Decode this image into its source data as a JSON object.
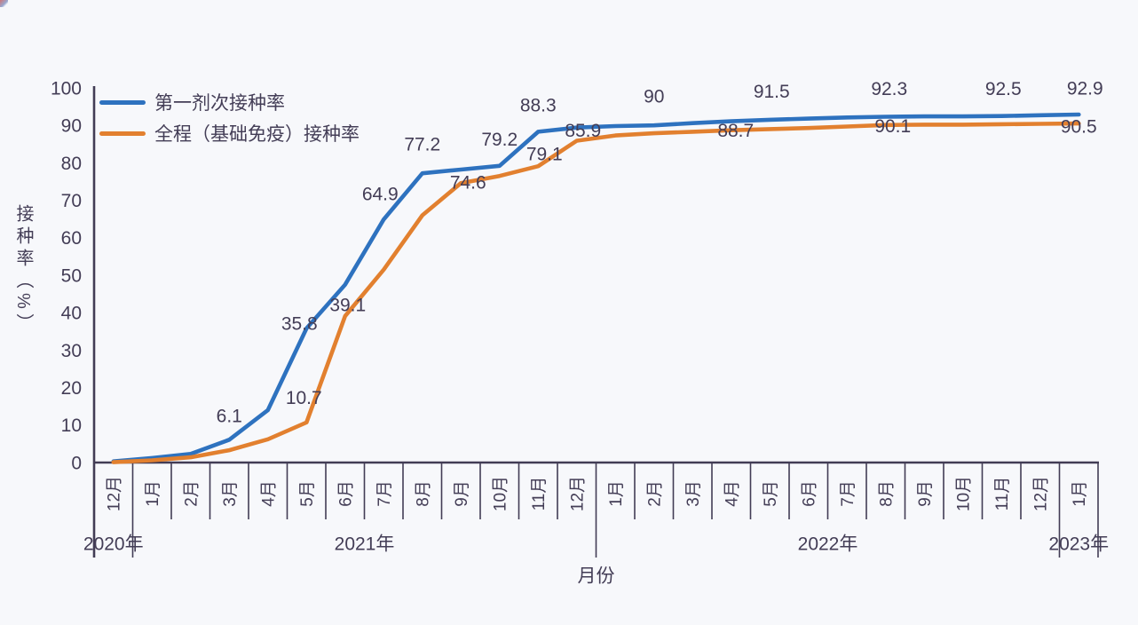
{
  "chart_data": {
    "type": "line",
    "title": "",
    "xlabel": "月份",
    "ylabel": "接种率（%）",
    "ylim": [
      0,
      100
    ],
    "y_ticks": [
      0,
      10,
      20,
      30,
      40,
      50,
      60,
      70,
      80,
      90,
      100
    ],
    "grid": false,
    "legend_position": "top-left-inside",
    "categories": [
      "12月",
      "1月",
      "2月",
      "3月",
      "4月",
      "5月",
      "6月",
      "7月",
      "8月",
      "9月",
      "10月",
      "11月",
      "12月",
      "1月",
      "2月",
      "3月",
      "4月",
      "5月",
      "6月",
      "7月",
      "8月",
      "9月",
      "10月",
      "11月",
      "12月",
      "1月"
    ],
    "year_groups": [
      {
        "label": "2020年",
        "span": 1
      },
      {
        "label": "2021年",
        "span": 12
      },
      {
        "label": "2022年",
        "span": 12
      },
      {
        "label": "2023年",
        "span": 1
      }
    ],
    "series": [
      {
        "name": "第一剂次接种率",
        "color": "#2e72bf",
        "values": [
          0.3,
          1.2,
          2.3,
          6.1,
          14,
          35.8,
          47.5,
          64.9,
          77.2,
          78.2,
          79.2,
          88.3,
          89.4,
          89.8,
          90,
          90.6,
          91.1,
          91.5,
          91.8,
          92.1,
          92.3,
          92.4,
          92.4,
          92.5,
          92.7,
          92.9
        ],
        "labels": [
          {
            "i": 3,
            "text": "6.1",
            "dx": 0,
            "dy": -27
          },
          {
            "i": 5,
            "text": "35.8",
            "dx": -8,
            "dy": -6
          },
          {
            "i": 7,
            "text": "64.9",
            "dx": -4,
            "dy": -29
          },
          {
            "i": 8,
            "text": "77.2",
            "dx": 0,
            "dy": -33
          },
          {
            "i": 10,
            "text": "79.2",
            "dx": 0,
            "dy": -30
          },
          {
            "i": 11,
            "text": "88.3",
            "dx": 0,
            "dy": -30
          },
          {
            "i": 14,
            "text": "90",
            "dx": 0,
            "dy": -33
          },
          {
            "i": 17,
            "text": "91.5",
            "dx": 2,
            "dy": -32
          },
          {
            "i": 20,
            "text": "92.3",
            "dx": 4,
            "dy": -32
          },
          {
            "i": 23,
            "text": "92.5",
            "dx": 2,
            "dy": -31
          },
          {
            "i": 25,
            "text": "92.9",
            "dx": 7,
            "dy": -30
          }
        ]
      },
      {
        "name": "全程（基础免疫）接种率",
        "color": "#e2802f",
        "values": [
          0.1,
          0.6,
          1.4,
          3.3,
          6.2,
          10.7,
          39.1,
          51.5,
          66,
          74.6,
          76.5,
          79.1,
          85.9,
          87.3,
          87.9,
          88.3,
          88.7,
          89,
          89.3,
          89.7,
          90.1,
          90.2,
          90.2,
          90.3,
          90.4,
          90.5
        ],
        "labels": [
          {
            "i": 5,
            "text": "10.7",
            "dx": -3,
            "dy": -28
          },
          {
            "i": 6,
            "text": "39.1",
            "dx": 3,
            "dy": -13
          },
          {
            "i": 9,
            "text": "74.6",
            "dx": 8,
            "dy": -1
          },
          {
            "i": 11,
            "text": "79.1",
            "dx": 7,
            "dy": -14
          },
          {
            "i": 12,
            "text": "85.9",
            "dx": 7,
            "dy": -12
          },
          {
            "i": 16,
            "text": "88.7",
            "dx": 5,
            "dy": 0
          },
          {
            "i": 20,
            "text": "90.1",
            "dx": 8,
            "dy": 1
          },
          {
            "i": 25,
            "text": "90.5",
            "dx": 0,
            "dy": 3
          }
        ]
      }
    ],
    "text_color": "#433d56",
    "axis_color": "#423c55",
    "background": "#f7f8fb"
  }
}
